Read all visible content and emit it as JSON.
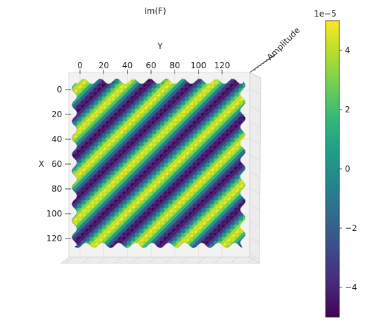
{
  "chart_data": {
    "type": "surface",
    "title": "Im(F)",
    "xlabel": "X",
    "ylabel": "Y",
    "zlabel": "Amplitude",
    "view": "top-down (looking along Amplitude axis)",
    "x_ticks": [
      0,
      20,
      40,
      60,
      80,
      100,
      120
    ],
    "y_ticks": [
      0,
      20,
      40,
      60,
      80,
      100,
      120
    ],
    "x_range": [
      0,
      127
    ],
    "y_range": [
      0,
      127
    ],
    "z_range": [
      -5e-05,
      5e-05
    ],
    "z_tick_text": "1e-5",
    "pattern": {
      "kind": "diagonal sinusoidal stripes",
      "stripe_count_along_diagonal": 8,
      "direction": "lower-left to upper-right"
    },
    "colorbar": {
      "colormap": "viridis",
      "min": -5,
      "max": 5,
      "ticks": [
        -4,
        -2,
        0,
        2,
        4
      ],
      "tick_labels": [
        "−4",
        "−2",
        "0",
        "2",
        "4"
      ],
      "offset_text": "1e−5",
      "stops": [
        "#440154",
        "#482878",
        "#3e4989",
        "#31688e",
        "#26828e",
        "#1f9e89",
        "#35b779",
        "#6ece58",
        "#b5de2b",
        "#fde725"
      ]
    }
  }
}
